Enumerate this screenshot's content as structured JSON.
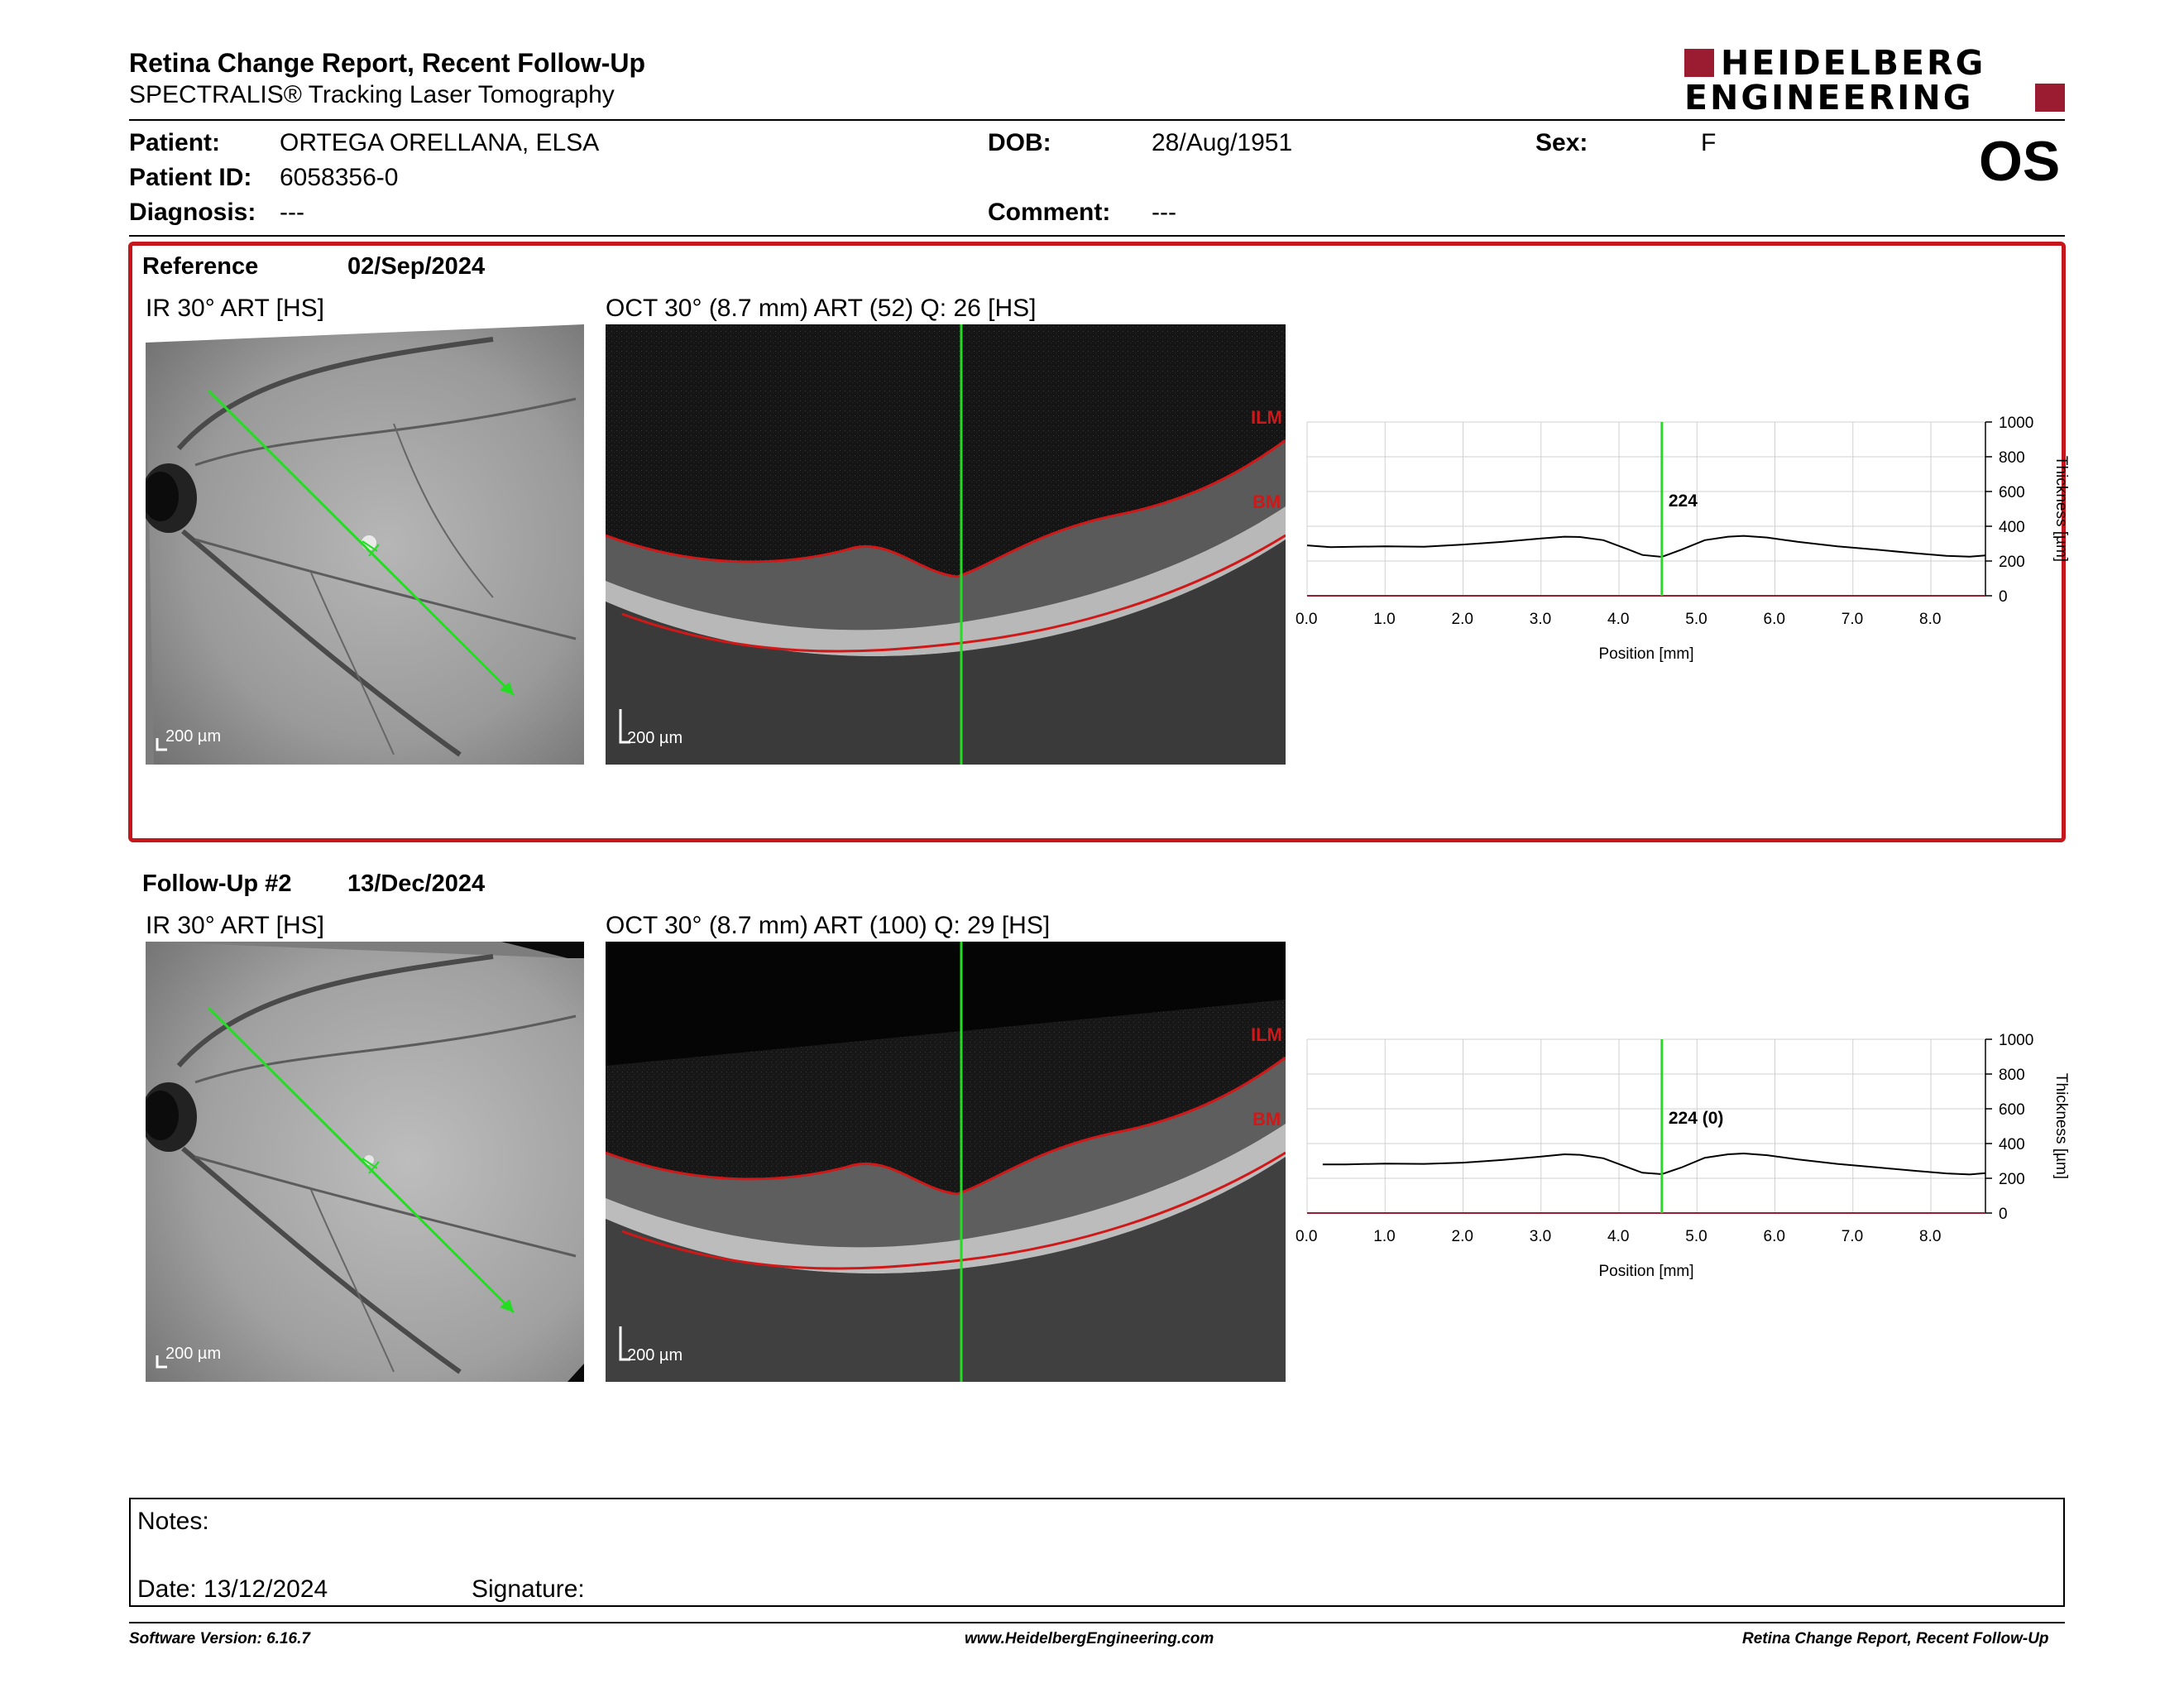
{
  "header": {
    "title": "Retina Change Report, Recent Follow-Up",
    "subtitle": "SPECTRALIS® Tracking Laser Tomography",
    "logo_line1": "HEIDELBERG",
    "logo_line2": "ENGINEERING",
    "eye": "OS"
  },
  "patient": {
    "patient_label": "Patient:",
    "patient_value": "ORTEGA ORELLANA, ELSA",
    "id_label": "Patient ID:",
    "id_value": "6058356-0",
    "diagnosis_label": "Diagnosis:",
    "diagnosis_value": "---",
    "dob_label": "DOB:",
    "dob_value": "28/Aug/1951",
    "comment_label": "Comment:",
    "comment_value": "---",
    "sex_label": "Sex:",
    "sex_value": "F"
  },
  "reference": {
    "heading": "Reference",
    "date": "02/Sep/2024",
    "ir_label": "IR 30° ART [HS]",
    "oct_label": "OCT 30° (8.7 mm) ART (52) Q: 26 [HS]",
    "scale_bar": "200 µm",
    "layer_top": "ILM",
    "layer_bottom": "BM",
    "value_label": "224"
  },
  "followup": {
    "heading": "Follow-Up #2",
    "date": "13/Dec/2024",
    "ir_label": "IR 30° ART [HS]",
    "oct_label": "OCT 30° (8.7 mm) ART (100) Q: 29 [HS]",
    "scale_bar": "200 µm",
    "layer_top": "ILM",
    "layer_bottom": "BM",
    "value_label": "224 (0)"
  },
  "notes": {
    "notes_label": "Notes:",
    "date_label": "Date: 13/12/2024",
    "signature_label": "Signature:"
  },
  "footer": {
    "left": "Software Version: 6.16.7",
    "center": "www.HeidelbergEngineering.com",
    "right": "Retina Change Report, Recent Follow-Up"
  },
  "colors": {
    "accent": "#c4161c",
    "brand": "#9b1b30",
    "scan_line": "#22dd22"
  },
  "chart_data": [
    {
      "type": "line",
      "xlabel": "Position [mm]",
      "ylabel": "Thickness [µm]",
      "xlim": [
        0,
        8.7
      ],
      "ylim": [
        0,
        1000
      ],
      "x_ticks": [
        "0.0",
        "1.0",
        "2.0",
        "3.0",
        "4.0",
        "5.0",
        "6.0",
        "7.0",
        "8.0"
      ],
      "y_ticks": [
        "0",
        "200",
        "400",
        "600",
        "800",
        "1000"
      ],
      "grid": true,
      "cursor_x": 4.55,
      "cursor_label": "224",
      "series": [
        {
          "x": [
            0,
            0.3,
            0.6,
            1,
            1.5,
            2,
            2.5,
            3,
            3.3,
            3.5,
            3.8,
            4.1,
            4.3,
            4.55,
            4.8,
            5.1,
            5.4,
            5.6,
            5.9,
            6.3,
            6.8,
            7.3,
            7.8,
            8.2,
            8.5,
            8.7
          ],
          "y": [
            290,
            280,
            282,
            285,
            282,
            295,
            310,
            330,
            340,
            338,
            320,
            270,
            235,
            224,
            265,
            320,
            340,
            345,
            335,
            310,
            285,
            265,
            245,
            230,
            225,
            232
          ]
        }
      ]
    },
    {
      "type": "line",
      "xlabel": "Position [mm]",
      "ylabel": "Thickness [µm]",
      "xlim": [
        0,
        8.7
      ],
      "ylim": [
        0,
        1000
      ],
      "x_ticks": [
        "0.0",
        "1.0",
        "2.0",
        "3.0",
        "4.0",
        "5.0",
        "6.0",
        "7.0",
        "8.0"
      ],
      "y_ticks": [
        "0",
        "200",
        "400",
        "600",
        "800",
        "1000"
      ],
      "grid": true,
      "cursor_x": 4.55,
      "cursor_label": "224 (0)",
      "series": [
        {
          "x": [
            0.2,
            0.5,
            1,
            1.5,
            2,
            2.5,
            3,
            3.3,
            3.5,
            3.8,
            4.1,
            4.3,
            4.55,
            4.8,
            5.1,
            5.4,
            5.6,
            5.9,
            6.3,
            6.8,
            7.3,
            7.8,
            8.2,
            8.5,
            8.7
          ],
          "y": [
            280,
            280,
            285,
            283,
            290,
            305,
            325,
            338,
            335,
            315,
            265,
            232,
            224,
            262,
            318,
            338,
            343,
            333,
            308,
            283,
            263,
            243,
            228,
            222,
            230
          ]
        }
      ]
    }
  ]
}
